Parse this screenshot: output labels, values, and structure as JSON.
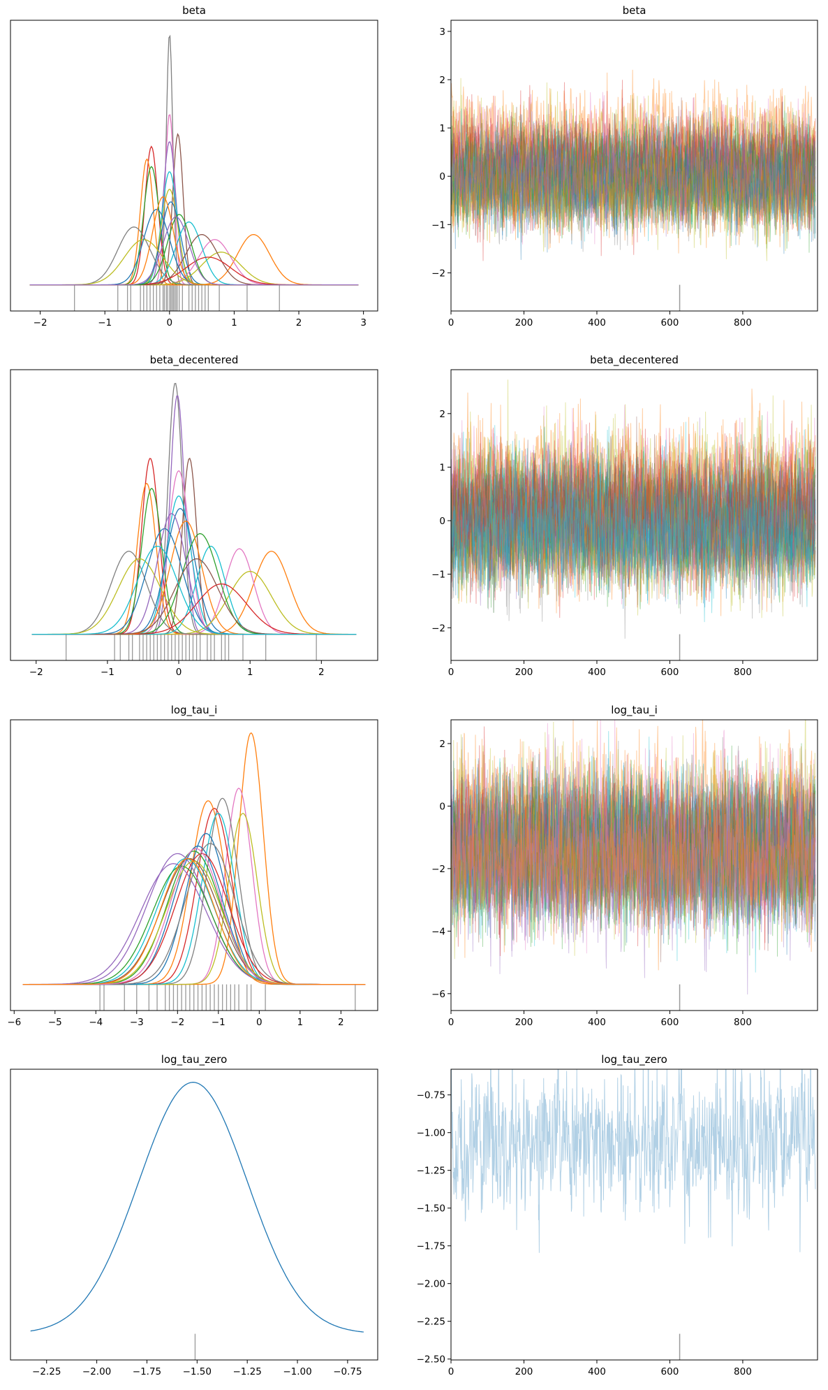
{
  "palette": [
    "#1f77b4",
    "#ff7f0e",
    "#2ca02c",
    "#d62728",
    "#9467bd",
    "#8c564b",
    "#e377c2",
    "#7f7f7f",
    "#bcbd22",
    "#17becf"
  ],
  "divergence_color": "#999999",
  "chart_data": [
    {
      "type": "line",
      "kind": "kde",
      "title": "beta",
      "row": 0,
      "xlim": [
        -2.46,
        3.22
      ],
      "xticks": [
        -2,
        -1,
        0,
        1,
        2,
        3
      ],
      "xticklabels": [
        "−2",
        "−1",
        "0",
        "1",
        "2",
        "3"
      ],
      "series": [
        {
          "mu": 0,
          "s": 0.05,
          "h": 1.0,
          "c": 7
        },
        {
          "mu": 0,
          "s": 0.07,
          "h": 0.68,
          "c": 6
        },
        {
          "mu": 0.13,
          "s": 0.08,
          "h": 0.6,
          "c": 5
        },
        {
          "mu": -0.28,
          "s": 0.1,
          "h": 0.55,
          "c": 3
        },
        {
          "mu": -0.35,
          "s": 0.1,
          "h": 0.5,
          "c": 1
        },
        {
          "mu": -0.28,
          "s": 0.12,
          "h": 0.47,
          "c": 2
        },
        {
          "mu": 0,
          "s": 0.1,
          "h": 0.57,
          "c": 4
        },
        {
          "mu": 0,
          "s": 0.12,
          "h": 0.45,
          "c": 9
        },
        {
          "mu": 0,
          "s": 0.13,
          "h": 0.38,
          "c": 8
        },
        {
          "mu": 0.02,
          "s": 0.15,
          "h": 0.33,
          "c": 0
        },
        {
          "mu": 1.3,
          "s": 0.25,
          "h": 0.2,
          "c": 1
        },
        {
          "mu": 0.7,
          "s": 0.25,
          "h": 0.18,
          "c": 6
        },
        {
          "mu": 0.8,
          "s": 0.3,
          "h": 0.13,
          "c": 8
        },
        {
          "mu": -0.55,
          "s": 0.25,
          "h": 0.23,
          "c": 7
        },
        {
          "mu": 0.3,
          "s": 0.2,
          "h": 0.25,
          "c": 9
        },
        {
          "mu": 0.5,
          "s": 0.25,
          "h": 0.2,
          "c": 5
        },
        {
          "mu": -0.4,
          "s": 0.3,
          "h": 0.18,
          "c": 8
        },
        {
          "mu": 0.6,
          "s": 0.35,
          "h": 0.11,
          "c": 3
        },
        {
          "mu": -0.2,
          "s": 0.2,
          "h": 0.3,
          "c": 0
        },
        {
          "mu": 0.15,
          "s": 0.18,
          "h": 0.28,
          "c": 2
        },
        {
          "mu": -0.1,
          "s": 0.16,
          "h": 0.35,
          "c": 1
        },
        {
          "mu": 0.1,
          "s": 0.2,
          "h": 0.27,
          "c": 4
        }
      ],
      "rug": [
        -1.47,
        -0.8,
        -0.65,
        -0.6,
        -0.45,
        -0.4,
        -0.35,
        -0.3,
        -0.25,
        -0.2,
        -0.15,
        -0.1,
        -0.08,
        -0.05,
        -0.03,
        0,
        0.02,
        0.04,
        0.06,
        0.08,
        0.1,
        0.12,
        0.15,
        0.2,
        0.3,
        0.35,
        0.4,
        0.45,
        0.5,
        0.55,
        0.6,
        0.77,
        1.2,
        1.7
      ]
    },
    {
      "type": "line",
      "kind": "trace",
      "title": "beta",
      "row": 0,
      "xlim": [
        0,
        1005
      ],
      "ylim": [
        -2.79,
        3.23
      ],
      "xticks": [
        0,
        200,
        400,
        600,
        800
      ],
      "xticklabels": [
        "0",
        "200",
        "400",
        "600",
        "800"
      ],
      "yticks": [
        -2,
        -1,
        0,
        1,
        2,
        3
      ],
      "yticklabels": [
        "−2",
        "−1",
        "0",
        "1",
        "2",
        "3"
      ],
      "draws": 1000,
      "trace_sd": 0.45,
      "trace_of": 0,
      "divergences": [
        627
      ]
    },
    {
      "type": "line",
      "kind": "kde",
      "title": "beta_decentered",
      "row": 1,
      "xlim": [
        -2.36,
        2.79
      ],
      "xticks": [
        -2,
        -1,
        0,
        1,
        2
      ],
      "xticklabels": [
        "−2",
        "−1",
        "0",
        "1",
        "2"
      ],
      "series": [
        {
          "mu": -0.05,
          "s": 0.1,
          "h": 1.0,
          "c": 7
        },
        {
          "mu": -0.02,
          "s": 0.1,
          "h": 0.95,
          "c": 4
        },
        {
          "mu": 0.15,
          "s": 0.1,
          "h": 0.7,
          "c": 5
        },
        {
          "mu": -0.4,
          "s": 0.12,
          "h": 0.7,
          "c": 3
        },
        {
          "mu": -0.45,
          "s": 0.13,
          "h": 0.6,
          "c": 1
        },
        {
          "mu": -0.38,
          "s": 0.14,
          "h": 0.58,
          "c": 2
        },
        {
          "mu": 0,
          "s": 0.15,
          "h": 0.65,
          "c": 6
        },
        {
          "mu": 0,
          "s": 0.17,
          "h": 0.55,
          "c": 9
        },
        {
          "mu": 0.02,
          "s": 0.2,
          "h": 0.5,
          "c": 0
        },
        {
          "mu": 1.3,
          "s": 0.25,
          "h": 0.33,
          "c": 1
        },
        {
          "mu": 0.85,
          "s": 0.2,
          "h": 0.34,
          "c": 6
        },
        {
          "mu": 1.0,
          "s": 0.3,
          "h": 0.25,
          "c": 8
        },
        {
          "mu": -0.7,
          "s": 0.25,
          "h": 0.33,
          "c": 7
        },
        {
          "mu": 0.45,
          "s": 0.2,
          "h": 0.35,
          "c": 9
        },
        {
          "mu": -0.55,
          "s": 0.3,
          "h": 0.3,
          "c": 8
        },
        {
          "mu": 0.3,
          "s": 0.25,
          "h": 0.4,
          "c": 2
        },
        {
          "mu": -0.2,
          "s": 0.25,
          "h": 0.42,
          "c": 0
        },
        {
          "mu": 0.6,
          "s": 0.35,
          "h": 0.2,
          "c": 3
        },
        {
          "mu": 0.1,
          "s": 0.22,
          "h": 0.45,
          "c": 1
        },
        {
          "mu": -0.1,
          "s": 0.2,
          "h": 0.48,
          "c": 4
        },
        {
          "mu": 0.25,
          "s": 0.3,
          "h": 0.3,
          "c": 5
        },
        {
          "mu": -0.3,
          "s": 0.28,
          "h": 0.35,
          "c": 9
        }
      ],
      "rug": [
        -1.58,
        -0.9,
        -0.82,
        -0.7,
        -0.65,
        -0.55,
        -0.5,
        -0.45,
        -0.4,
        -0.35,
        -0.3,
        -0.25,
        -0.2,
        -0.15,
        -0.1,
        -0.05,
        0,
        0.05,
        0.1,
        0.15,
        0.2,
        0.25,
        0.3,
        0.4,
        0.45,
        0.5,
        0.6,
        0.65,
        0.7,
        0.9,
        1.22,
        1.93
      ]
    },
    {
      "type": "line",
      "kind": "trace",
      "title": "beta_decentered",
      "row": 1,
      "xlim": [
        0,
        1005
      ],
      "ylim": [
        -2.61,
        2.82
      ],
      "xticks": [
        0,
        200,
        400,
        600,
        800
      ],
      "xticklabels": [
        "0",
        "200",
        "400",
        "600",
        "800"
      ],
      "yticks": [
        -2,
        -1,
        0,
        1,
        2
      ],
      "yticklabels": [
        "−2",
        "−1",
        "0",
        "1",
        "2"
      ],
      "draws": 1000,
      "trace_sd": 0.5,
      "trace_of": 2,
      "divergences": [
        627
      ]
    },
    {
      "type": "line",
      "kind": "kde",
      "title": "log_tau_i",
      "row": 2,
      "xlim": [
        -6.09,
        2.9
      ],
      "xticks": [
        -6,
        -5,
        -4,
        -3,
        -2,
        -1,
        0,
        1,
        2
      ],
      "xticklabels": [
        "−6",
        "−5",
        "−4",
        "−3",
        "−2",
        "−1",
        "0",
        "1",
        "2"
      ],
      "series": [
        {
          "mu": -0.2,
          "s": 0.3,
          "h": 1.0,
          "c": 1
        },
        {
          "mu": -0.5,
          "s": 0.32,
          "h": 0.78,
          "c": 6
        },
        {
          "mu": -0.9,
          "s": 0.38,
          "h": 0.74,
          "c": 7
        },
        {
          "mu": -0.4,
          "s": 0.35,
          "h": 0.68,
          "c": 8
        },
        {
          "mu": -1.1,
          "s": 0.42,
          "h": 0.7,
          "c": 3
        },
        {
          "mu": -1.25,
          "s": 0.42,
          "h": 0.73,
          "c": 1
        },
        {
          "mu": -1.0,
          "s": 0.4,
          "h": 0.68,
          "c": 9
        },
        {
          "mu": -1.3,
          "s": 0.5,
          "h": 0.6,
          "c": 0
        },
        {
          "mu": -1.6,
          "s": 0.65,
          "h": 0.53,
          "c": 2
        },
        {
          "mu": -2.0,
          "s": 0.75,
          "h": 0.52,
          "c": 4
        },
        {
          "mu": -1.7,
          "s": 0.7,
          "h": 0.5,
          "c": 5
        },
        {
          "mu": -1.5,
          "s": 0.6,
          "h": 0.55,
          "c": 0
        },
        {
          "mu": -1.8,
          "s": 0.7,
          "h": 0.5,
          "c": 9
        },
        {
          "mu": -1.4,
          "s": 0.65,
          "h": 0.52,
          "c": 3
        },
        {
          "mu": -1.9,
          "s": 0.72,
          "h": 0.47,
          "c": 2
        },
        {
          "mu": -1.6,
          "s": 0.68,
          "h": 0.49,
          "c": 8
        },
        {
          "mu": -2.1,
          "s": 0.8,
          "h": 0.48,
          "c": 4
        },
        {
          "mu": -1.2,
          "s": 0.6,
          "h": 0.56,
          "c": 7
        },
        {
          "mu": -1.55,
          "s": 0.62,
          "h": 0.54,
          "c": 6
        },
        {
          "mu": -1.75,
          "s": 0.66,
          "h": 0.5,
          "c": 1
        }
      ],
      "rug": [
        -3.9,
        -3.8,
        -3.3,
        -3.0,
        -2.7,
        -2.5,
        -2.3,
        -2.2,
        -2.1,
        -2.0,
        -1.9,
        -1.8,
        -1.7,
        -1.6,
        -1.5,
        -1.4,
        -1.3,
        -1.2,
        -1.1,
        -1.0,
        -0.9,
        -0.8,
        -0.7,
        -0.6,
        -0.5,
        -0.3,
        -0.2,
        0.15,
        2.35
      ]
    },
    {
      "type": "line",
      "kind": "trace",
      "title": "log_tau_i",
      "row": 2,
      "xlim": [
        0,
        1005
      ],
      "ylim": [
        -6.54,
        2.76
      ],
      "xticks": [
        0,
        200,
        400,
        600,
        800
      ],
      "xticklabels": [
        "0",
        "200",
        "400",
        "600",
        "800"
      ],
      "yticks": [
        -6,
        -4,
        -2,
        0,
        2
      ],
      "yticklabels": [
        "−6",
        "−4",
        "−2",
        "0",
        "2"
      ],
      "draws": 1000,
      "trace_sd": 1.05,
      "trace_of": 4,
      "divergences": [
        627
      ]
    },
    {
      "type": "line",
      "kind": "kde",
      "title": "log_tau_zero",
      "row": 3,
      "xlim": [
        -2.43,
        -0.6
      ],
      "xticks": [
        -2.25,
        -2.0,
        -1.75,
        -1.5,
        -1.25,
        -1.0,
        -0.75
      ],
      "xticklabels": [
        "−2.25",
        "−2.00",
        "−1.75",
        "−1.50",
        "−1.25",
        "−1.00",
        "−0.75"
      ],
      "range": [
        -2.33,
        -0.67
      ],
      "series": [
        {
          "mu": -1.52,
          "s": 0.27,
          "h": 1.0,
          "c": 0
        }
      ],
      "rug": [
        -1.51
      ]
    },
    {
      "type": "line",
      "kind": "trace",
      "title": "log_tau_zero",
      "row": 3,
      "xlim": [
        0,
        1005
      ],
      "ylim": [
        -2.506,
        -0.58
      ],
      "xticks": [
        0,
        200,
        400,
        600,
        800
      ],
      "xticklabels": [
        "0",
        "200",
        "400",
        "600",
        "800"
      ],
      "yticks": [
        -2.5,
        -2.25,
        -2.0,
        -1.75,
        -1.5,
        -1.25,
        -1.0,
        -0.75
      ],
      "yticklabels": [
        "−2.50",
        "−2.25",
        "−2.00",
        "−1.75",
        "−1.50",
        "−1.25",
        "−1.00",
        "−0.75"
      ],
      "draws": 1000,
      "trace_sd": 0.25,
      "trace_of": 6,
      "divergences": [
        627
      ]
    }
  ]
}
